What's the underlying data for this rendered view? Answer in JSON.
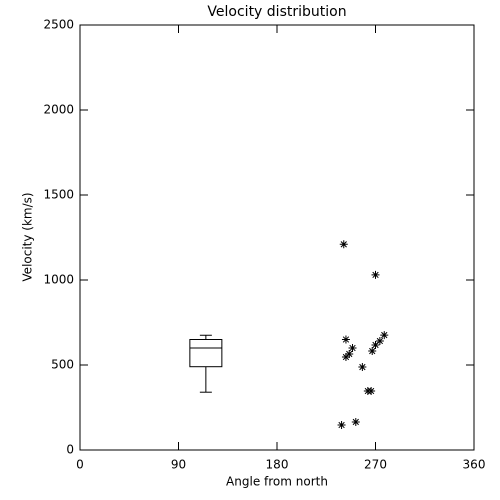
{
  "chart_data": {
    "type": "scatter",
    "title": "Velocity distribution",
    "xlabel": "Angle from north",
    "ylabel": "Velocity (km/s)",
    "x": [
      241,
      270,
      243,
      249,
      246,
      243,
      258,
      267,
      270,
      274,
      278,
      263,
      266,
      239,
      252
    ],
    "y": [
      1210,
      1030,
      650,
      600,
      565,
      547,
      488,
      582,
      618,
      641,
      676,
      347,
      347,
      147,
      165
    ],
    "color": "#000000",
    "box": {
      "x": 115,
      "whisker_low": 340,
      "q1": 490,
      "median": 600,
      "q3": 650,
      "whisker_high": 675
    },
    "xlim": [
      0,
      360
    ],
    "xticks": [
      0,
      90,
      180,
      270,
      360
    ],
    "ylim": [
      0,
      2500
    ],
    "yticks": [
      0,
      500,
      1000,
      1500,
      2000,
      2500
    ]
  }
}
